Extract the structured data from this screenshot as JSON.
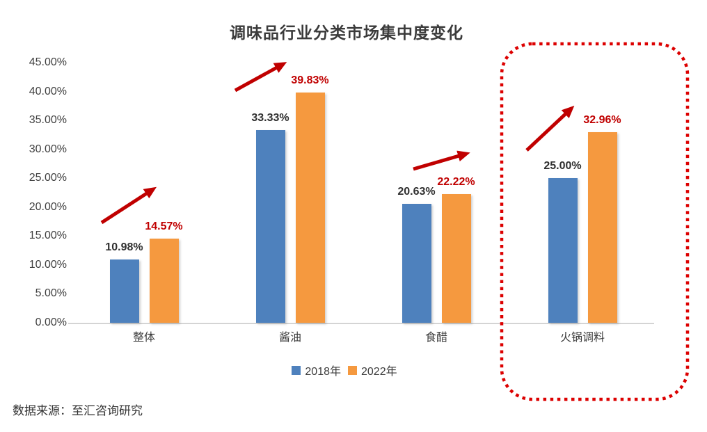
{
  "title": "调味品行业分类市场集中度变化",
  "source_note": "数据来源：至汇咨询研究",
  "chart_data": {
    "type": "bar",
    "title": "调味品行业分类市场集中度变化",
    "categories": [
      "整体",
      "酱油",
      "食醋",
      "火锅调料"
    ],
    "series": [
      {
        "name": "2018年",
        "color": "#4E81BD",
        "values": [
          10.98,
          33.33,
          20.63,
          25.0
        ],
        "data_labels": [
          "10.98%",
          "33.33%",
          "20.63%",
          "25.00%"
        ],
        "label_color": "#2f2f2f"
      },
      {
        "name": "2022年",
        "color": "#F5993F",
        "values": [
          14.57,
          39.83,
          22.22,
          32.96
        ],
        "data_labels": [
          "14.57%",
          "39.83%",
          "22.22%",
          "32.96%"
        ],
        "label_color": "#C00000"
      }
    ],
    "xlabel": "",
    "ylabel": "",
    "ylim": [
      0,
      45
    ],
    "ytick_step": 5,
    "ytick_labels": [
      "0.00%",
      "5.00%",
      "10.00%",
      "15.00%",
      "20.00%",
      "25.00%",
      "30.00%",
      "35.00%",
      "40.00%",
      "45.00%"
    ],
    "grid": false,
    "legend_position": "bottom",
    "annotations": {
      "trend_arrows": [
        "up",
        "up",
        "up",
        "up"
      ],
      "arrow_color": "#C00000",
      "highlight_box": {
        "category": "火锅调料",
        "style": "red-dotted-rounded-rect",
        "color": "#DC0000"
      }
    }
  },
  "colors": {
    "background": "#FFFFFF",
    "axis_text": "#404040",
    "axis_line": "#D4D4D4"
  }
}
